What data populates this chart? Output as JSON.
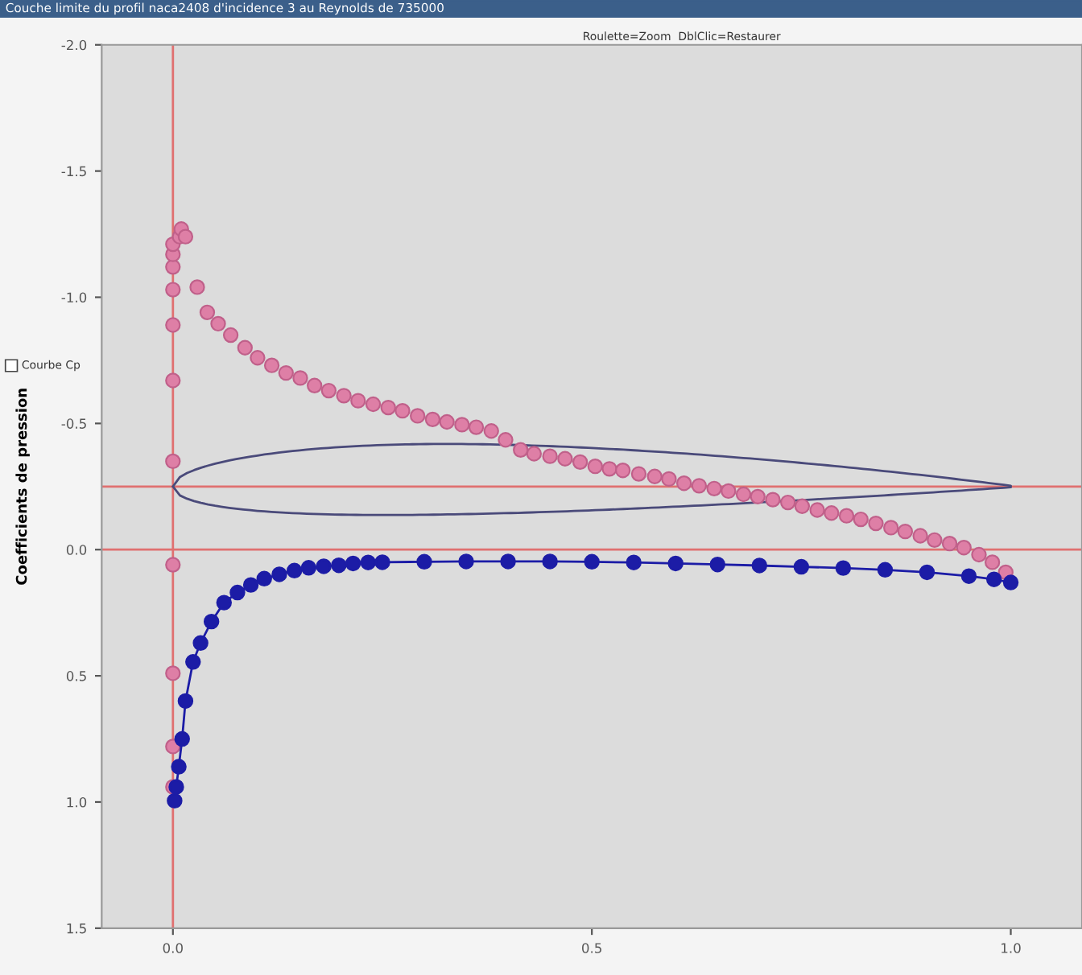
{
  "chart_data": {
    "type": "scatter",
    "title": "Couche limite du profil naca2408 d'incidence 3 au Reynolds de 735000",
    "subtitle": "Roulette=Zoom  DblClic=Restaurer",
    "ylabel": "Coefficients de pression",
    "annotations": [
      "Courbe Cp"
    ],
    "xlim": [
      -0.085,
      1.085
    ],
    "xticks": [
      {
        "value": 0,
        "label": "0.0"
      },
      0.5,
      {
        "value": 1,
        "label": "1.0"
      }
    ],
    "ylim": [
      1.5,
      -2.0
    ],
    "yticks": [
      {
        "value": -2,
        "label": "-2.0"
      },
      -1.5,
      {
        "value": -1,
        "label": "-1.0"
      },
      -0.5,
      {
        "value": 0,
        "label": "0.0"
      },
      0.5,
      {
        "value": 1,
        "label": "1.0"
      },
      1.5
    ],
    "grid": false,
    "legend": false,
    "marker": "circle",
    "ref_lines": [
      {
        "axis": "x",
        "value": 0,
        "color": "#e07070"
      },
      {
        "axis": "y",
        "value": 0,
        "color": "#e07070"
      },
      {
        "axis": "y",
        "value": -0.25,
        "color": "#e07070"
      }
    ],
    "series": [
      {
        "color": "#de7fa6",
        "x": [
          0.0,
          0.0,
          0.0,
          0.0,
          0.0,
          0.0,
          0.0,
          0.0,
          0.0,
          0.0,
          0.0,
          0.008,
          0.01,
          0.015,
          0.029,
          0.041,
          0.054,
          0.069,
          0.086,
          0.101,
          0.118,
          0.135,
          0.152,
          0.169,
          0.186,
          0.204,
          0.221,
          0.239,
          0.257,
          0.274,
          0.292,
          0.31,
          0.327,
          0.345,
          0.362,
          0.38,
          0.397,
          0.415,
          0.431,
          0.45,
          0.468,
          0.486,
          0.504,
          0.521,
          0.537,
          0.556,
          0.575,
          0.592,
          0.61,
          0.628,
          0.646,
          0.663,
          0.681,
          0.698,
          0.716,
          0.734,
          0.751,
          0.769,
          0.786,
          0.804,
          0.821,
          0.839,
          0.857,
          0.874,
          0.892,
          0.909,
          0.927,
          0.944,
          0.962,
          0.978,
          0.994
        ],
        "values": [
          0.94,
          0.78,
          0.49,
          0.06,
          -0.35,
          -0.67,
          -0.89,
          -1.03,
          -1.12,
          -1.17,
          -1.21,
          -1.24,
          -1.27,
          -1.24,
          -1.04,
          -0.94,
          -0.895,
          -0.85,
          -0.8,
          -0.76,
          -0.73,
          -0.7,
          -0.68,
          -0.65,
          -0.63,
          -0.61,
          -0.59,
          -0.576,
          -0.563,
          -0.55,
          -0.53,
          -0.516,
          -0.506,
          -0.495,
          -0.485,
          -0.47,
          -0.435,
          -0.395,
          -0.38,
          -0.37,
          -0.36,
          -0.347,
          -0.33,
          -0.32,
          -0.314,
          -0.3,
          -0.29,
          -0.28,
          -0.263,
          -0.253,
          -0.242,
          -0.232,
          -0.219,
          -0.21,
          -0.198,
          -0.187,
          -0.172,
          -0.157,
          -0.145,
          -0.134,
          -0.12,
          -0.104,
          -0.087,
          -0.072,
          -0.055,
          -0.038,
          -0.024,
          -0.008,
          0.02,
          0.05,
          0.09
        ]
      },
      {
        "type": "line",
        "marker": "circle",
        "color": "#1c1ca6",
        "x": [
          0.002,
          0.004,
          0.007,
          0.011,
          0.015,
          0.024,
          0.033,
          0.046,
          0.061,
          0.077,
          0.093,
          0.109,
          0.127,
          0.145,
          0.162,
          0.18,
          0.198,
          0.215,
          0.233,
          0.25,
          0.3,
          0.35,
          0.4,
          0.45,
          0.5,
          0.55,
          0.6,
          0.65,
          0.7,
          0.75,
          0.8,
          0.85,
          0.9,
          0.95,
          0.98,
          1.0
        ],
        "values": [
          0.995,
          0.94,
          0.86,
          0.75,
          0.6,
          0.445,
          0.37,
          0.285,
          0.21,
          0.17,
          0.14,
          0.115,
          0.098,
          0.083,
          0.072,
          0.066,
          0.062,
          0.055,
          0.051,
          0.05,
          0.048,
          0.047,
          0.047,
          0.047,
          0.048,
          0.051,
          0.055,
          0.059,
          0.063,
          0.068,
          0.073,
          0.08,
          0.09,
          0.105,
          0.118,
          0.13
        ]
      }
    ]
  }
}
